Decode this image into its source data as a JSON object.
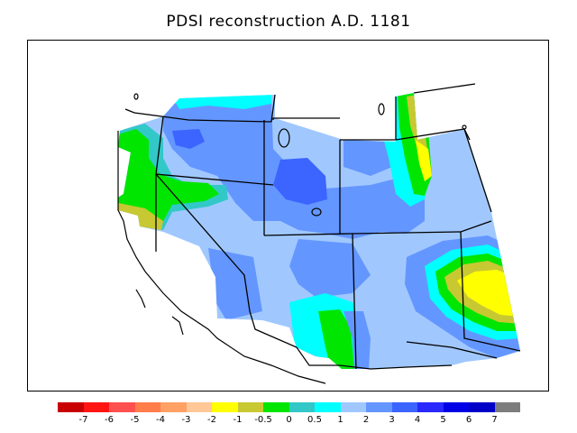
{
  "title": "PDSI reconstruction A.D. 1181",
  "legend": {
    "colors": [
      "#c80000",
      "#ff1414",
      "#ff5050",
      "#ff7d4b",
      "#ffa064",
      "#ffc896",
      "#ffff00",
      "#c8c832",
      "#00e600",
      "#32c8c8",
      "#00ffff",
      "#a0c8ff",
      "#6496ff",
      "#3c64ff",
      "#2828ff",
      "#0000e6",
      "#0000c8",
      "#7d7d7d"
    ],
    "labels": [
      "-7",
      "-6",
      "-5",
      "-4",
      "-3",
      "-2",
      "-1",
      "-0.5",
      "0",
      "0.5",
      "1",
      "2",
      "3",
      "4",
      "5",
      "6",
      "7"
    ]
  },
  "region_colors": {
    "light_blue": "#a0c8ff",
    "blue": "#6496ff",
    "dark_blue": "#3c64ff",
    "cyan": "#00ffff",
    "teal": "#32c8c8",
    "green": "#00e600",
    "olive": "#c8c832",
    "yellow": "#ffff00"
  }
}
